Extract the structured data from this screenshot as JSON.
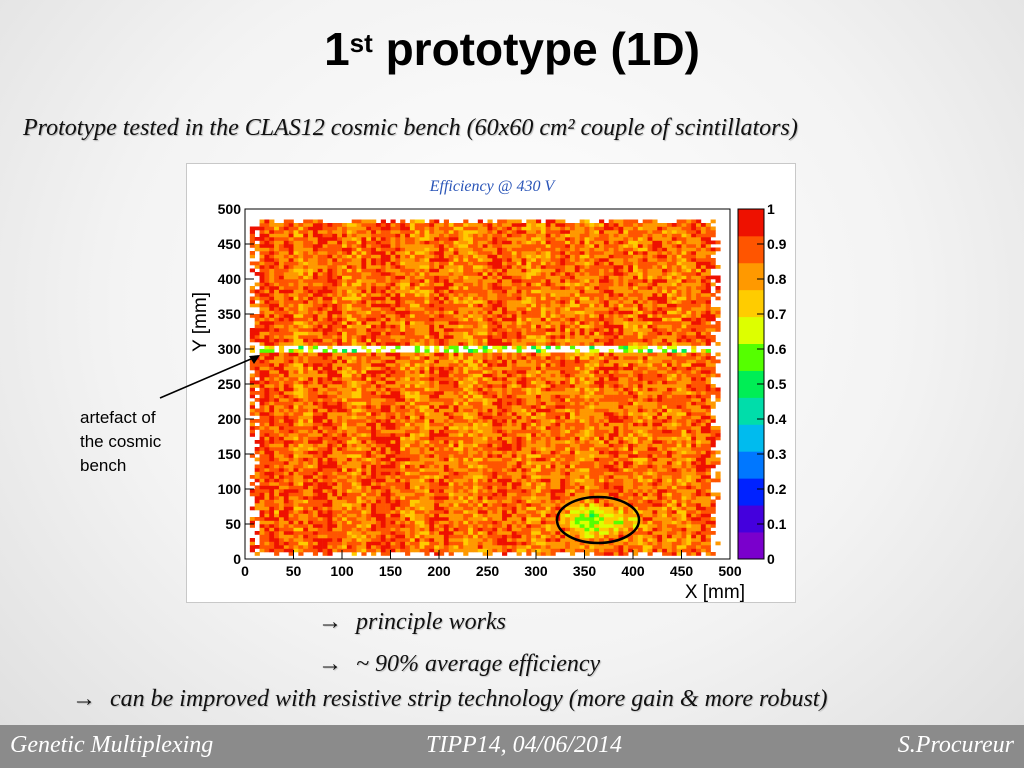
{
  "slide": {
    "title_main": "1",
    "title_sup": "st",
    "title_rest": " prototype (1D)",
    "subtitle": "Prototype tested in the CLAS12 cosmic bench (60x60 cm² couple of scintillators)",
    "annotation": [
      "artefact of",
      "the cosmic",
      "bench"
    ],
    "bullets": [
      {
        "arrow": "→",
        "text": "principle works"
      },
      {
        "arrow": "→",
        "text": "~ 90% average efficiency"
      },
      {
        "arrow": "→",
        "text": "can be improved with resistive strip technology (more gain & more robust)"
      }
    ]
  },
  "footer": {
    "left": "Genetic Multiplexing",
    "center": "TIPP14, 04/06/2014",
    "right": "S.Procureur"
  },
  "chart_data": {
    "type": "heatmap",
    "title": "Efficiency @ 430 V",
    "xlabel": "X [mm]",
    "ylabel": "Y [mm]",
    "xlim": [
      0,
      500
    ],
    "ylim": [
      0,
      500
    ],
    "x_ticks": [
      0,
      50,
      100,
      150,
      200,
      250,
      300,
      350,
      400,
      450,
      500
    ],
    "y_ticks": [
      0,
      50,
      100,
      150,
      200,
      250,
      300,
      350,
      400,
      450,
      500
    ],
    "colorbar_ticks": [
      0,
      0.1,
      0.2,
      0.3,
      0.4,
      0.5,
      0.6,
      0.7,
      0.8,
      0.9,
      1
    ],
    "zlim": [
      0,
      1
    ],
    "active_region": {
      "x": [
        5,
        488
      ],
      "y": [
        5,
        485
      ]
    },
    "artefact_y": 297,
    "average_efficiency": 0.9,
    "low_efficiency_region": {
      "x_center": 362,
      "y_center": 52,
      "x_halfwidth": 42,
      "y_halfwidth": 24
    },
    "x_column_pattern": [
      0.94,
      0.92,
      0.93,
      0.9,
      0.91,
      0.86,
      0.88,
      0.93,
      0.94,
      0.9,
      0.86,
      0.84,
      0.88,
      0.92,
      0.94,
      0.92,
      0.87,
      0.85,
      0.86,
      0.9,
      0.92,
      0.88,
      0.85,
      0.84,
      0.87,
      0.9,
      0.93,
      0.9,
      0.88,
      0.86,
      0.86,
      0.88,
      0.91,
      0.88,
      0.86,
      0.85,
      0.88,
      0.91,
      0.9,
      0.88,
      0.86,
      0.88,
      0.9,
      0.88,
      0.86,
      0.87,
      0.9,
      0.92,
      0.9
    ]
  }
}
